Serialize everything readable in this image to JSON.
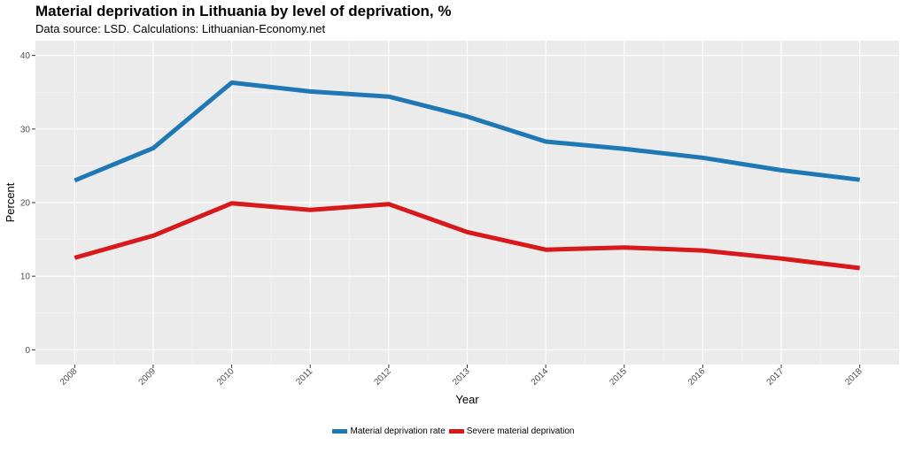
{
  "chart_data": {
    "type": "line",
    "title": "Material deprivation in Lithuania by level of deprivation, %",
    "subtitle": "Data source: LSD. Calculations: Lithuanian-Economy.net",
    "xlabel": "Year",
    "ylabel": "Percent",
    "x": [
      "2008",
      "2009",
      "2010",
      "2011",
      "2012",
      "2013",
      "2014",
      "2015",
      "2016",
      "2017",
      "2018"
    ],
    "yticks": [
      "0",
      "10",
      "20",
      "30",
      "40"
    ],
    "ylim": [
      -2,
      42
    ],
    "grid": true,
    "legend_position": "bottom",
    "series": [
      {
        "name": "Material deprivation rate",
        "color": "#1f78b4",
        "values": [
          23.0,
          27.4,
          36.3,
          35.1,
          34.4,
          31.7,
          28.3,
          27.3,
          26.1,
          24.4,
          23.1
        ]
      },
      {
        "name": "Severe material deprivation",
        "color": "#d7191c",
        "values": [
          12.5,
          15.5,
          19.9,
          19.0,
          19.8,
          16.0,
          13.6,
          13.9,
          13.5,
          12.4,
          11.1
        ]
      }
    ]
  }
}
